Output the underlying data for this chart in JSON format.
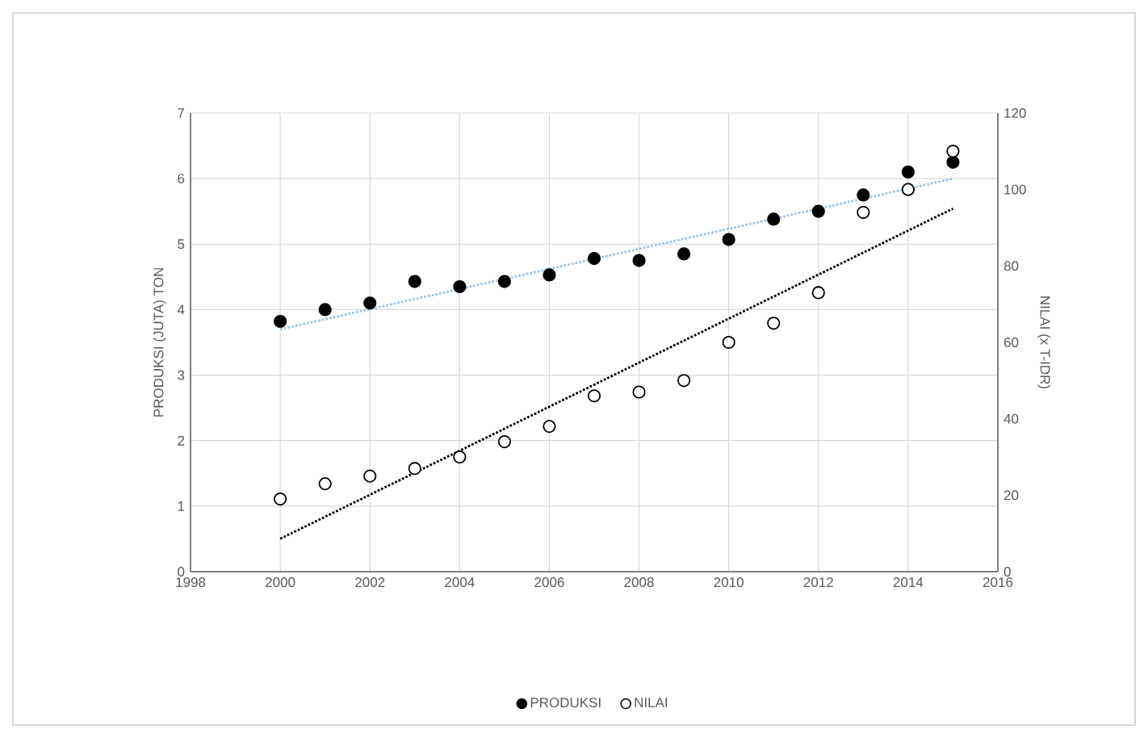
{
  "chart_data": {
    "type": "scatter",
    "ylabel": "PRODUKSI (JUTA) TON",
    "y2label": "NILAI (x T-IDR)",
    "xlim": [
      1998,
      2016
    ],
    "xticks": [
      1998,
      2000,
      2002,
      2004,
      2006,
      2008,
      2010,
      2012,
      2014,
      2016
    ],
    "ylim": [
      0,
      7
    ],
    "yticks": [
      0,
      1,
      2,
      3,
      4,
      5,
      6,
      7
    ],
    "y2lim": [
      0,
      120
    ],
    "y2ticks": [
      0,
      20,
      40,
      60,
      80,
      100,
      120
    ],
    "grid": true,
    "legend": "bottom",
    "series": [
      {
        "name": "PRODUKSI",
        "type": "scatter",
        "marker": "circle",
        "color": "#000000",
        "x": [
          2000,
          2001,
          2002,
          2003,
          2004,
          2005,
          2006,
          2007,
          2008,
          2009,
          2010,
          2011,
          2012,
          2013,
          2014,
          2015
        ],
        "values": [
          3.82,
          4.0,
          4.1,
          4.43,
          4.35,
          4.43,
          4.53,
          4.78,
          4.75,
          4.85,
          5.07,
          5.38,
          5.5,
          5.75,
          6.1,
          6.25
        ]
      },
      {
        "name": "NILAI",
        "type": "scatter",
        "marker": "circle",
        "axis": "y2",
        "color": "#ffffff",
        "x": [
          2000,
          2001,
          2002,
          2003,
          2004,
          2005,
          2006,
          2007,
          2008,
          2009,
          2010,
          2011,
          2012,
          2013,
          2014,
          2015
        ],
        "values": [
          19,
          23,
          25,
          27,
          30,
          34,
          38,
          46,
          47,
          50,
          60,
          65,
          73,
          94,
          100,
          110
        ]
      },
      {
        "type": "line",
        "line_style": "dotted",
        "marker": "none",
        "color": "#9dc3e6",
        "x": [
          2000,
          2015
        ],
        "values": [
          3.7,
          6.0
        ]
      },
      {
        "type": "line",
        "line_style": "dotted",
        "marker": "none",
        "axis": "y2",
        "color": "#000000",
        "x": [
          2000,
          2015
        ],
        "values": [
          8.6,
          95
        ]
      }
    ]
  }
}
